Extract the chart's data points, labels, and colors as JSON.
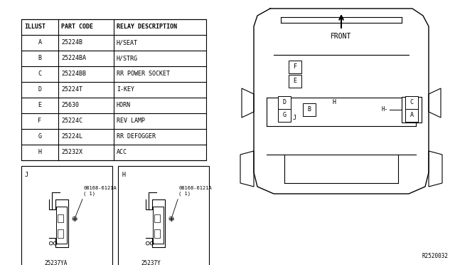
{
  "table_headers": [
    "ILLUST",
    "PART CODE",
    "RELAY DESCRIPTION"
  ],
  "table_rows": [
    [
      "A",
      "25224B",
      "H/SEAT"
    ],
    [
      "B",
      "25224BA",
      "H/STRG"
    ],
    [
      "C",
      "25224BB",
      "RR POWER SOCKET"
    ],
    [
      "D",
      "25224T",
      "I-KEY"
    ],
    [
      "E",
      "25630",
      "HORN"
    ],
    [
      "F",
      "25224C",
      "REV LAMP"
    ],
    [
      "G",
      "25224L",
      "RR DEFOGGER"
    ],
    [
      "H",
      "25232X",
      "ACC"
    ]
  ],
  "bolt_label": "08168-6121A",
  "bolt_qty": "( 1)",
  "part_J": "25237YA",
  "part_H_illus": "25237Y",
  "diagram_ref": "R2520032"
}
